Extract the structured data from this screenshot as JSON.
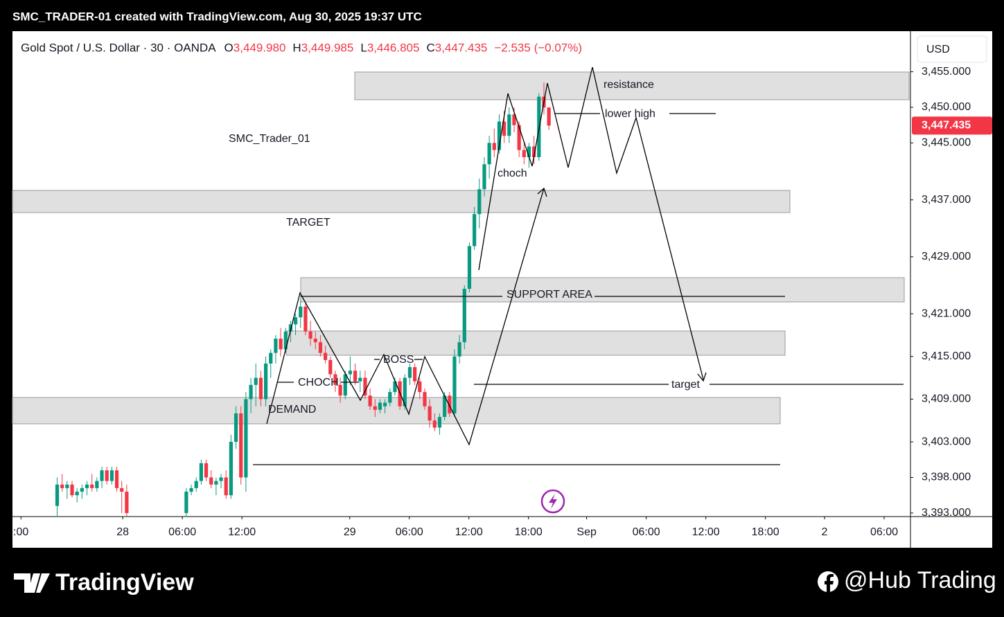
{
  "header": {
    "caption": "SMC_TRADER-01 created with TradingView.com, Aug 30, 2025 19:37 UTC",
    "symbol": "Gold Spot / U.S. Dollar · 30 · OANDA",
    "ohlc": [
      {
        "key": "O",
        "value": "3,449.980"
      },
      {
        "key": "H",
        "value": "3,449.985"
      },
      {
        "key": "L",
        "value": "3,446.805"
      },
      {
        "key": "C",
        "value": "3,447.435"
      }
    ],
    "change": "−2.535 (−0.07%)",
    "currency": "USD"
  },
  "annotations": {
    "resistance": "resistance",
    "lower_high": "lower high",
    "author": "SMC_Trader_01",
    "choch_small": "choch",
    "target_zone": "TARGET",
    "support": "SUPPORT AREA",
    "boss": "BOSS",
    "choch": "CHOCH",
    "demand": "DEMAND",
    "target": "target"
  },
  "footer": {
    "brand": "TradingView",
    "credit": "@Hub Trading"
  },
  "chart_data": {
    "type": "candlestick",
    "up_color": "#089981",
    "down_color": "#f23645",
    "x": [
      9,
      10,
      11,
      12,
      13,
      14,
      15,
      16,
      17,
      18,
      19,
      20,
      21,
      22,
      23,
      35,
      36,
      37,
      38,
      39,
      40,
      41,
      42,
      43,
      44,
      45,
      46,
      47,
      48,
      49,
      50,
      51,
      52,
      53,
      54,
      55,
      56,
      57,
      58,
      59,
      60,
      61,
      62,
      63,
      64,
      65,
      66,
      67,
      68,
      69,
      70,
      71,
      72,
      73,
      74,
      75,
      76,
      77,
      78,
      79,
      80,
      81,
      82,
      83,
      84,
      85,
      86,
      87,
      88,
      89,
      90,
      91,
      92,
      93,
      94,
      95,
      96,
      97,
      98,
      99,
      100,
      101,
      102,
      103,
      104,
      105,
      106,
      107,
      108
    ],
    "open": [
      3394,
      3397,
      3396.5,
      3397,
      3395.5,
      3396,
      3396.5,
      3397,
      3396.5,
      3397.5,
      3399,
      3397.5,
      3399,
      3396.5,
      3396,
      3393,
      3396,
      3396.5,
      3397.5,
      3400,
      3398,
      3397,
      3397.5,
      3398,
      3395.5,
      3403,
      3407,
      3398,
      3409,
      3411,
      3412,
      3409,
      3414,
      3415.5,
      3417.5,
      3416,
      3418.5,
      3419.5,
      3420.5,
      3422,
      3418.5,
      3417.5,
      3417,
      3415.5,
      3414.5,
      3412.5,
      3411,
      3409.5,
      3412.5,
      3413,
      3411.5,
      3412,
      3409.5,
      3408,
      3407.5,
      3408,
      3408.5,
      3410,
      3411.5,
      3408,
      3412,
      3413.5,
      3411.5,
      3410,
      3408,
      3406,
      3405,
      3406.5,
      3409.5,
      3407,
      3415,
      3417,
      3424.5,
      3430.5,
      3435,
      3438.5,
      3442,
      3445,
      3444,
      3448,
      3446,
      3449,
      3447.5,
      3444,
      3443,
      3444.5,
      3443,
      3451.5,
      3449.98
    ],
    "high": [
      3398,
      3398.5,
      3397.5,
      3397.5,
      3396.5,
      3397,
      3397.5,
      3398.5,
      3398,
      3399.5,
      3399.5,
      3399.5,
      3399.5,
      3397.5,
      3397,
      3396.5,
      3397,
      3398,
      3400.5,
      3400.5,
      3399,
      3398,
      3398.5,
      3399,
      3404,
      3408,
      3408,
      3410,
      3412,
      3414,
      3413,
      3415,
      3416,
      3418,
      3419,
      3419,
      3420,
      3421,
      3423,
      3422.5,
      3420,
      3418.5,
      3418,
      3416.5,
      3415,
      3413,
      3412,
      3413,
      3415,
      3414,
      3413,
      3413,
      3410.5,
      3409,
      3409,
      3409,
      3410.5,
      3412,
      3412,
      3412.5,
      3414,
      3414,
      3412,
      3410.5,
      3409,
      3407,
      3407,
      3410,
      3410,
      3416,
      3418,
      3425,
      3431,
      3436,
      3440,
      3443,
      3446,
      3447,
      3449,
      3449.5,
      3450,
      3450,
      3448,
      3445,
      3445,
      3446,
      3452,
      3453.5,
      3449.985
    ],
    "low": [
      3392.6,
      3396,
      3395,
      3395.2,
      3394.5,
      3395,
      3395.5,
      3396,
      3396,
      3396.5,
      3397,
      3397,
      3396,
      3393,
      3392.6,
      3392.6,
      3395.5,
      3396,
      3397,
      3397.5,
      3396.5,
      3395.5,
      3396.5,
      3395,
      3395,
      3402,
      3397,
      3396,
      3407,
      3408,
      3408,
      3408,
      3412,
      3414,
      3415,
      3415.5,
      3417,
      3418,
      3419,
      3418,
      3416.5,
      3416,
      3415,
      3414,
      3412,
      3410,
      3408.5,
      3409,
      3411,
      3411,
      3410,
      3409,
      3407.5,
      3406.5,
      3407,
      3407,
      3408,
      3409.5,
      3407.5,
      3407.5,
      3411,
      3411,
      3409,
      3407.5,
      3405,
      3404.5,
      3404,
      3406,
      3406.5,
      3406.5,
      3414,
      3416,
      3424,
      3430,
      3433,
      3437.5,
      3440,
      3443,
      3443.5,
      3445,
      3445,
      3446.5,
      3443,
      3442,
      3441.5,
      3442,
      3442.5,
      3449,
      3446.805
    ],
    "close": [
      3397,
      3396.5,
      3397,
      3395.5,
      3396,
      3396.5,
      3397,
      3396.5,
      3397.5,
      3399,
      3397.5,
      3399,
      3396.5,
      3396,
      3393,
      3396,
      3396.5,
      3397.5,
      3400,
      3398,
      3397,
      3397.5,
      3398,
      3395.5,
      3403,
      3407,
      3398,
      3409,
      3411,
      3412,
      3409,
      3414,
      3415.5,
      3417.5,
      3416,
      3418.5,
      3419.5,
      3420.5,
      3422,
      3418.5,
      3417.5,
      3417,
      3415.5,
      3414.5,
      3412.5,
      3411,
      3409.5,
      3412.5,
      3413,
      3411.5,
      3412,
      3409.5,
      3408,
      3407.5,
      3408.5,
      3408.5,
      3410,
      3411.5,
      3408,
      3412,
      3413.5,
      3411.5,
      3410,
      3408,
      3406,
      3405,
      3406.5,
      3409.5,
      3407,
      3415,
      3417,
      3424.5,
      3430.5,
      3435,
      3438.5,
      3442,
      3445,
      3444,
      3448,
      3446,
      3449,
      3447.5,
      3444,
      3443,
      3444.5,
      3443,
      3451.5,
      3449.97,
      3447.435
    ],
    "xlim": [
      0,
      180.8
    ],
    "xticks": [
      {
        "value": 1.7,
        "label": ":00"
      },
      {
        "value": 22.2,
        "label": "28"
      },
      {
        "value": 34.2,
        "label": "06:00"
      },
      {
        "value": 46.2,
        "label": "12:00"
      },
      {
        "value": 67.9,
        "label": "29"
      },
      {
        "value": 79.9,
        "label": "06:00"
      },
      {
        "value": 91.9,
        "label": "12:00"
      },
      {
        "value": 103.9,
        "label": "18:00"
      },
      {
        "value": 115.6,
        "label": "Sep"
      },
      {
        "value": 127.6,
        "label": "06:00"
      },
      {
        "value": 139.6,
        "label": "12:00"
      },
      {
        "value": 151.6,
        "label": "18:00"
      },
      {
        "value": 163.5,
        "label": "2"
      },
      {
        "value": 175.5,
        "label": "06:00"
      }
    ],
    "ylim": [
      3392.5,
      3460.7
    ],
    "yticks": [
      {
        "value": 3455,
        "label": "3,455.000"
      },
      {
        "value": 3450,
        "label": "3,450.000"
      },
      {
        "value": 3445,
        "label": "3,445.000"
      },
      {
        "value": 3437,
        "label": "3,437.000"
      },
      {
        "value": 3429,
        "label": "3,429.000"
      },
      {
        "value": 3421,
        "label": "3,421.000"
      },
      {
        "value": 3415,
        "label": "3,415.000"
      },
      {
        "value": 3409,
        "label": "3,409.000"
      },
      {
        "value": 3403,
        "label": "3,403.000"
      },
      {
        "value": 3398,
        "label": "3,398.000"
      },
      {
        "value": 3393,
        "label": "3,393.000"
      }
    ],
    "last_price": {
      "value": 3447.435,
      "label": "3,447.435"
    }
  }
}
